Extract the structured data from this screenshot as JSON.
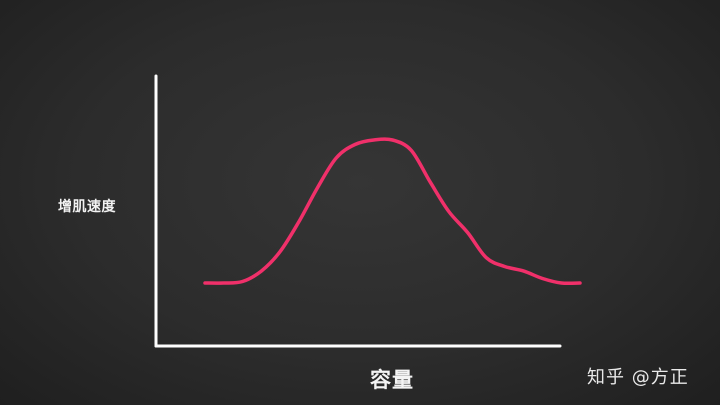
{
  "chart_data": {
    "type": "line",
    "title": "",
    "xlabel": "容量",
    "ylabel": "增肌速度",
    "x": [
      0,
      0.5,
      1,
      1.5,
      2,
      2.5,
      3,
      3.5,
      4,
      4.5,
      5,
      5.5,
      6,
      6.5,
      7,
      7.5,
      8,
      8.5,
      9,
      9.5,
      10
    ],
    "series": [
      {
        "values": [
          0.04,
          0.04,
          0.05,
          0.12,
          0.25,
          0.45,
          0.68,
          0.88,
          0.97,
          1.0,
          1.0,
          0.93,
          0.72,
          0.52,
          0.38,
          0.21,
          0.15,
          0.12,
          0.07,
          0.04,
          0.04
        ]
      }
    ],
    "ylim": [
      0,
      1.1
    ],
    "xlim": [
      0,
      10
    ],
    "grid": false,
    "line_color": "#f0306a",
    "axis_color": "#ffffff"
  },
  "watermark": "知乎 @方正"
}
